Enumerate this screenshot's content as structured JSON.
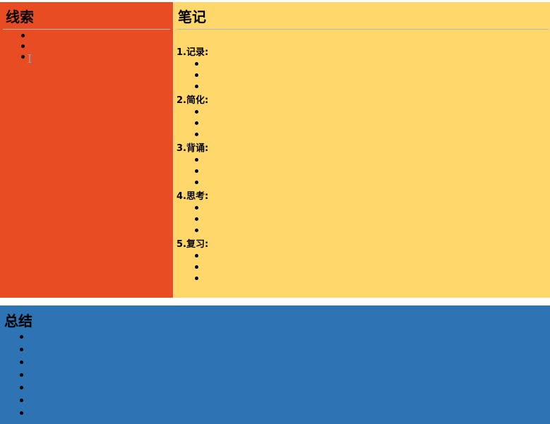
{
  "clues": {
    "title": "线索",
    "bullets": [
      "",
      "",
      ""
    ],
    "background": "#e84c22"
  },
  "notes": {
    "title": "笔记",
    "background": "#ffd76a",
    "sections": [
      {
        "heading": "1.记录:",
        "bullets": [
          "",
          "",
          ""
        ]
      },
      {
        "heading": "2.简化:",
        "bullets": [
          "",
          "",
          ""
        ]
      },
      {
        "heading": "3.背诵:",
        "bullets": [
          "",
          "",
          ""
        ]
      },
      {
        "heading": "4.思考:",
        "bullets": [
          "",
          "",
          ""
        ]
      },
      {
        "heading": "5.复习:",
        "bullets": [
          "",
          "",
          ""
        ]
      }
    ]
  },
  "summary": {
    "title": "总结",
    "bullets": [
      "",
      "",
      "",
      "",
      "",
      "",
      ""
    ],
    "background": "#2e74b5"
  },
  "cursor": {
    "icon": "text-cursor-icon"
  }
}
